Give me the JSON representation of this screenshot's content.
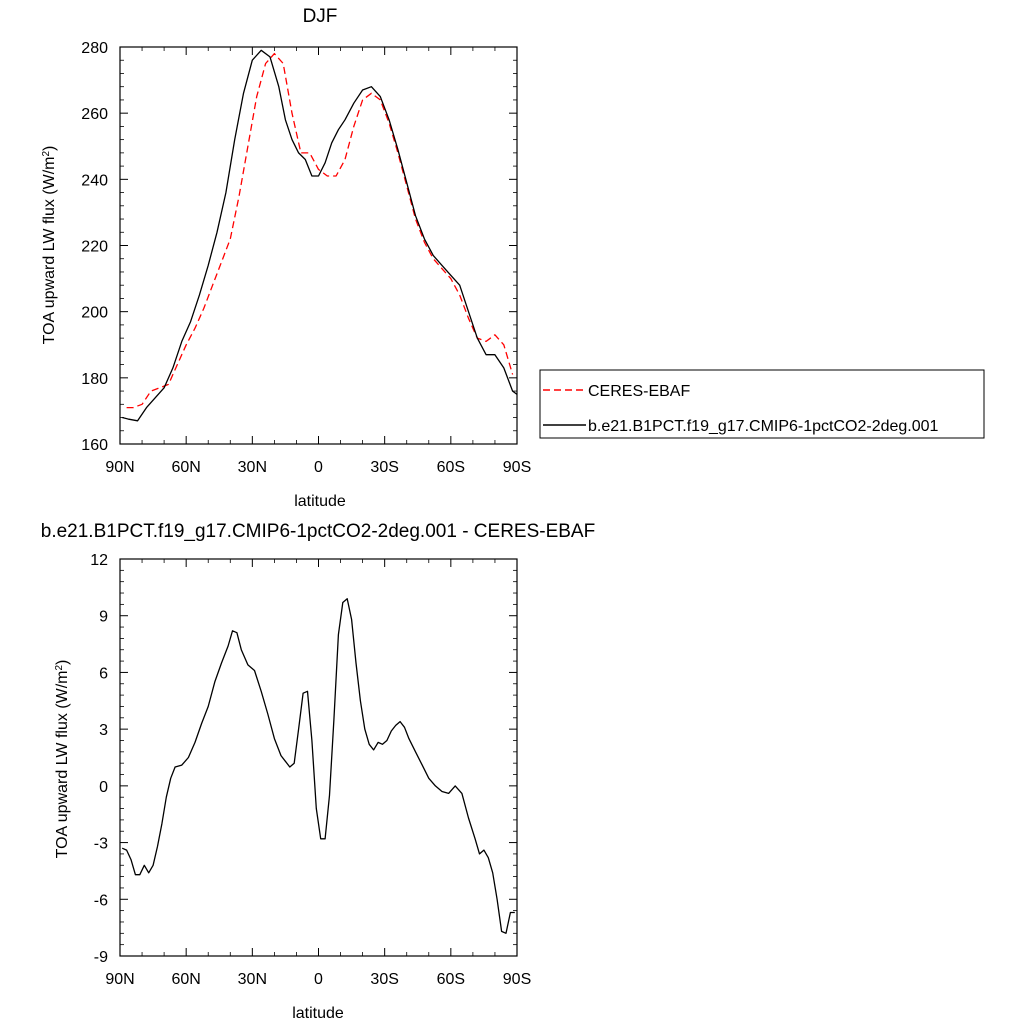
{
  "chart_data": [
    {
      "type": "line",
      "title": "DJF",
      "xlabel": "latitude",
      "ylabel": "TOA upward LW flux (W/m",
      "ylabel_sup": "2",
      "ylabel_close": ")",
      "x_ticks": [
        "90N",
        "60N",
        "30N",
        "0",
        "30S",
        "60S",
        "90S"
      ],
      "x_tick_values": [
        90,
        60,
        30,
        0,
        -30,
        -60,
        -90
      ],
      "xlim": [
        90,
        -90
      ],
      "ylim": [
        160,
        280
      ],
      "y_ticks": [
        160,
        180,
        200,
        220,
        240,
        260,
        280
      ],
      "legend_position": "right",
      "series": [
        {
          "name": "CERES-EBAF",
          "color": "#ff0000",
          "dash": "dashed",
          "x": [
            87,
            84,
            80,
            76,
            72,
            68,
            64,
            60,
            56,
            52,
            48,
            44,
            40,
            36,
            32,
            28,
            24,
            20,
            16,
            12,
            8,
            4,
            0,
            -4,
            -8,
            -12,
            -16,
            -20,
            -24,
            -28,
            -32,
            -36,
            -40,
            -44,
            -48,
            -52,
            -56,
            -60,
            -64,
            -68,
            -72,
            -76,
            -80,
            -84,
            -88
          ],
          "y": [
            171,
            171,
            172,
            176,
            177,
            178,
            184,
            190,
            195,
            201,
            208,
            215,
            222,
            235,
            250,
            265,
            275,
            278,
            275,
            260,
            248,
            248,
            243,
            241,
            241,
            246,
            256,
            264,
            266,
            264,
            257,
            248,
            238,
            228,
            221,
            216,
            213,
            210,
            205,
            198,
            192,
            191,
            193,
            190,
            181
          ]
        },
        {
          "name": "b.e21.B1PCT.f19_g17.CMIP6-1pctCO2-2deg.001",
          "color": "#000000",
          "dash": "solid",
          "x": [
            89,
            86,
            82,
            78,
            74,
            70,
            66,
            62,
            58,
            54,
            50,
            46,
            42,
            38,
            34,
            30,
            26,
            22,
            18,
            15,
            12,
            9,
            6,
            3,
            0,
            -3,
            -6,
            -9,
            -12,
            -16,
            -20,
            -24,
            -28,
            -32,
            -36,
            -40,
            -44,
            -48,
            -52,
            -56,
            -60,
            -64,
            -68,
            -72,
            -76,
            -80,
            -84,
            -88,
            -90
          ],
          "y": [
            168,
            167.5,
            167,
            171,
            174,
            177,
            183,
            191,
            197,
            205,
            214,
            224,
            236,
            252,
            266,
            276,
            279,
            277,
            268,
            258,
            252,
            248,
            246,
            241,
            241,
            245,
            251,
            255,
            258,
            263,
            267,
            268,
            265,
            258,
            249,
            239,
            229,
            222,
            217,
            214,
            211,
            208,
            200,
            192,
            187,
            187,
            183,
            176,
            175
          ]
        }
      ]
    },
    {
      "type": "line",
      "title": "b.e21.B1PCT.f19_g17.CMIP6-1pctCO2-2deg.001 - CERES-EBAF",
      "xlabel": "latitude",
      "ylabel": "TOA upward LW flux (W/m",
      "ylabel_sup": "2",
      "ylabel_close": ")",
      "x_ticks": [
        "90N",
        "60N",
        "30N",
        "0",
        "30S",
        "60S",
        "90S"
      ],
      "x_tick_values": [
        90,
        60,
        30,
        0,
        -30,
        -60,
        -90
      ],
      "xlim": [
        90,
        -90
      ],
      "ylim": [
        -9,
        12
      ],
      "y_ticks": [
        -9,
        -6,
        -3,
        0,
        3,
        6,
        9,
        12
      ],
      "series": [
        {
          "color": "#000000",
          "dash": "solid",
          "x": [
            89,
            87,
            85,
            83,
            81,
            79,
            77,
            75,
            73,
            71,
            69,
            67,
            65,
            62,
            59,
            56,
            53,
            50,
            47,
            44,
            41,
            39,
            37,
            35,
            32,
            29,
            26,
            23,
            20,
            17,
            15,
            13,
            11,
            9,
            7,
            5,
            3,
            1,
            -1,
            -3,
            -5,
            -7,
            -9,
            -11,
            -13,
            -15,
            -17,
            -19,
            -21,
            -23,
            -25,
            -27,
            -29,
            -31,
            -33,
            -35,
            -37,
            -39,
            -41,
            -44,
            -47,
            -50,
            -53,
            -56,
            -59,
            -62,
            -65,
            -68,
            -71,
            -73,
            -75,
            -77,
            -79,
            -81,
            -83,
            -85,
            -87,
            -89
          ],
          "y": [
            -3.3,
            -3.4,
            -3.9,
            -4.7,
            -4.7,
            -4.2,
            -4.6,
            -4.2,
            -3.2,
            -2.0,
            -0.6,
            0.4,
            1.0,
            1.1,
            1.5,
            2.3,
            3.3,
            4.2,
            5.5,
            6.5,
            7.4,
            8.2,
            8.1,
            7.2,
            6.4,
            6.1,
            5.0,
            3.8,
            2.5,
            1.6,
            1.3,
            1.0,
            1.2,
            3.0,
            4.9,
            5.0,
            2.4,
            -1.2,
            -2.8,
            -2.8,
            -0.5,
            3.5,
            8.0,
            9.7,
            9.9,
            8.8,
            6.5,
            4.5,
            3.0,
            2.2,
            1.9,
            2.3,
            2.2,
            2.4,
            2.9,
            3.2,
            3.4,
            3.1,
            2.5,
            1.8,
            1.1,
            0.4,
            0.0,
            -0.3,
            -0.4,
            0.0,
            -0.4,
            -1.7,
            -2.8,
            -3.6,
            -3.4,
            -3.8,
            -4.6,
            -6.0,
            -7.7,
            -7.8,
            -6.7,
            -6.7
          ]
        }
      ]
    }
  ]
}
